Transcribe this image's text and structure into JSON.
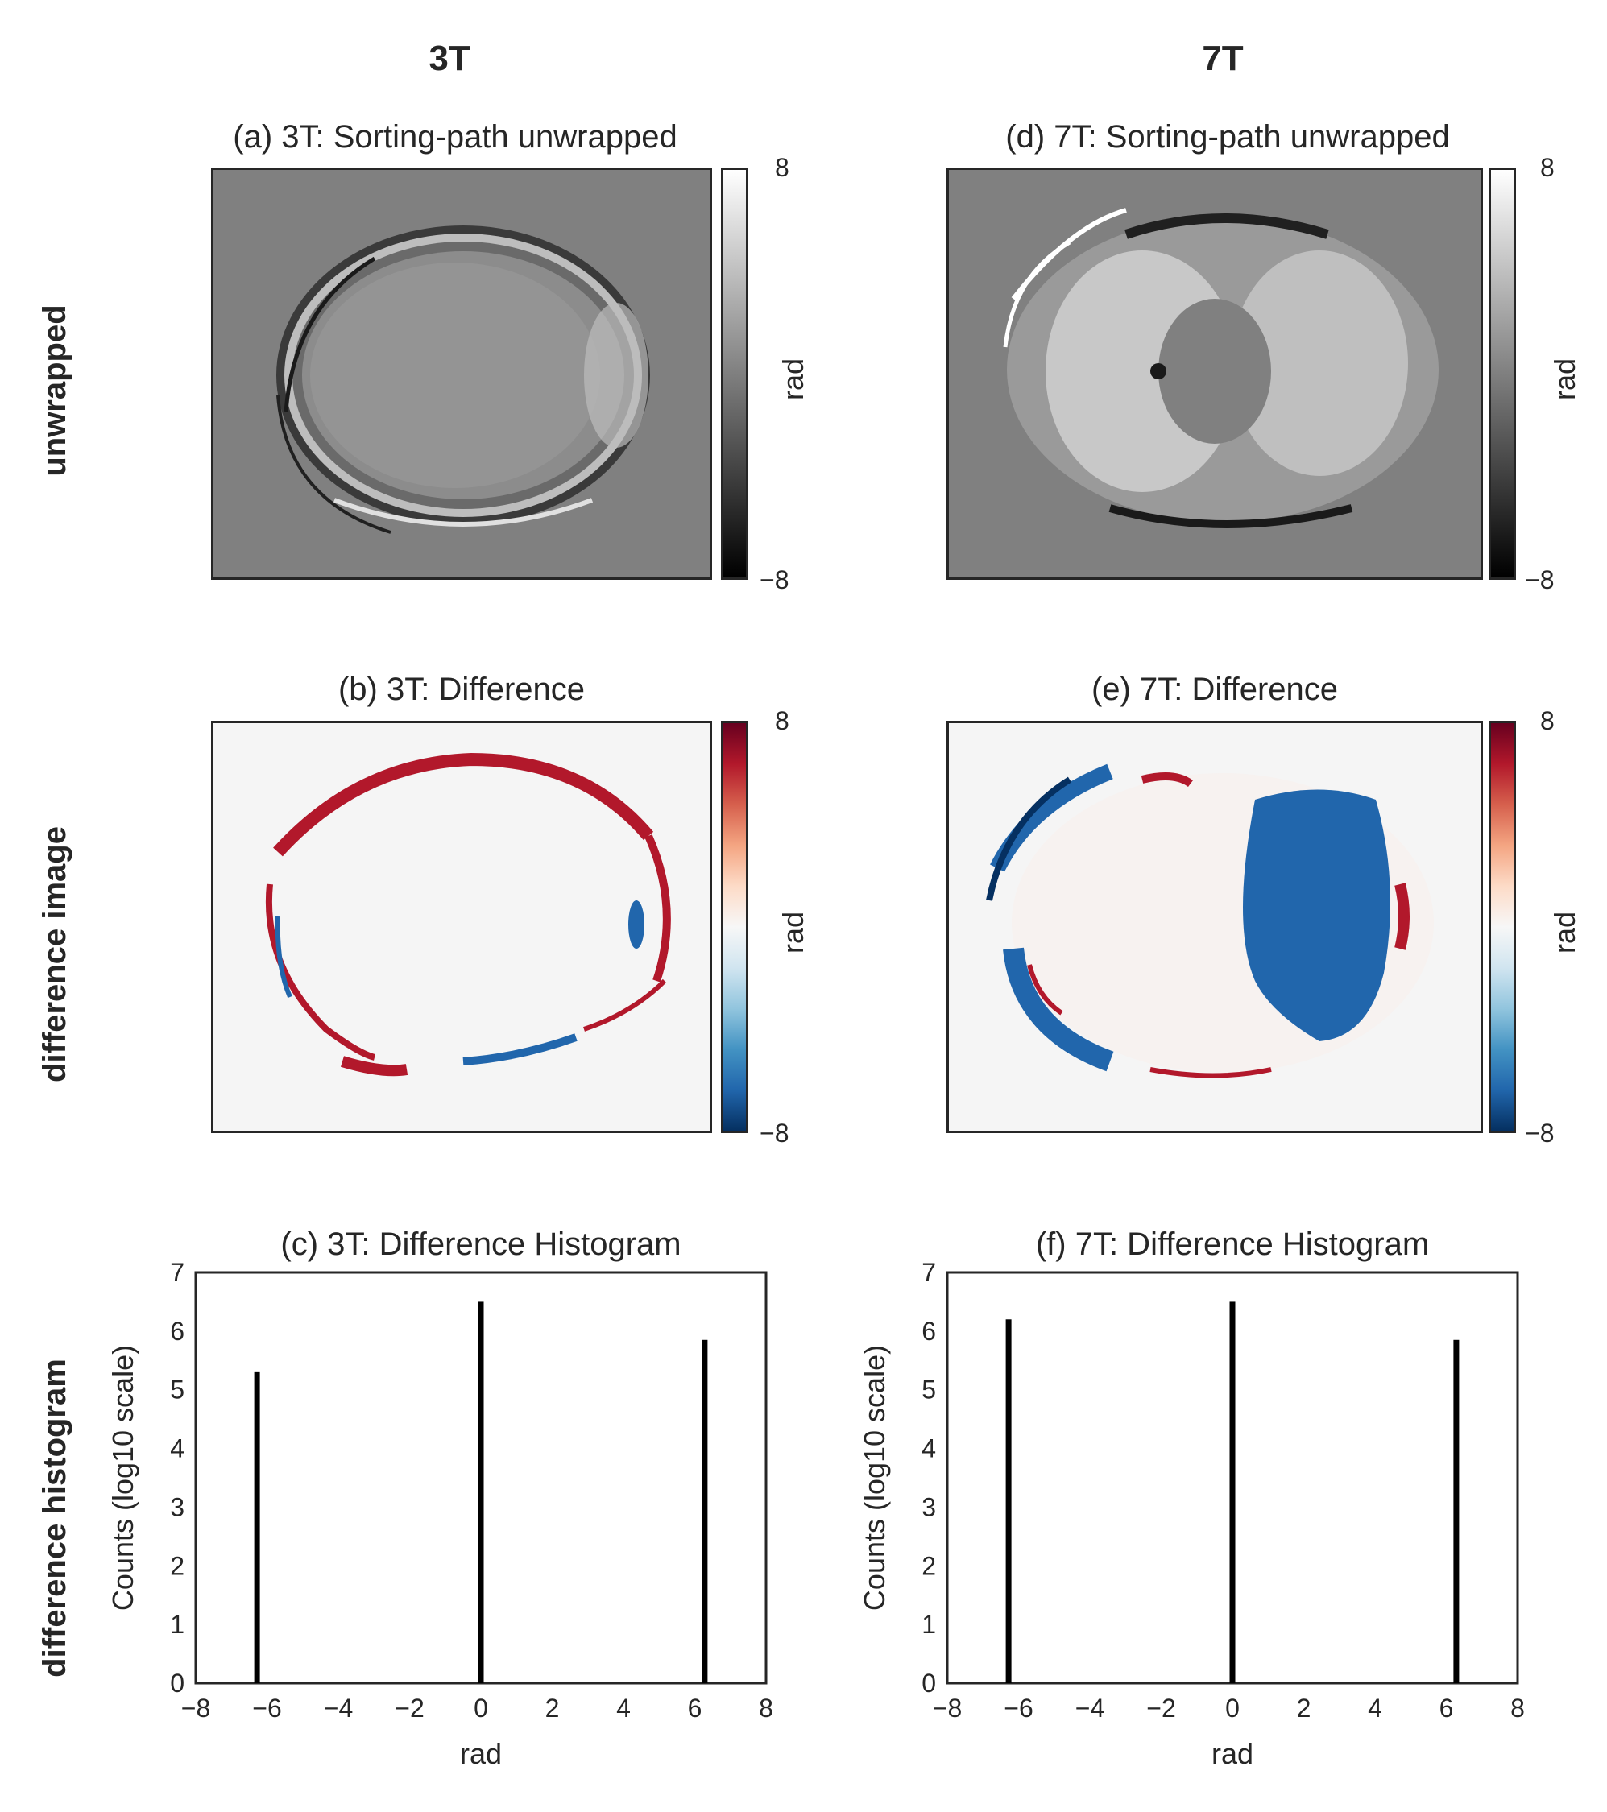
{
  "columns": [
    "3T",
    "7T"
  ],
  "rows": [
    "unwrapped",
    "difference image",
    "difference histogram"
  ],
  "panels": {
    "a": {
      "title": "(a) 3T: Sorting-path unwrapped",
      "cbar_label": "rad",
      "cbar_max": "8",
      "cbar_min": "−8",
      "colormap": "gray"
    },
    "b": {
      "title": "(b) 3T: Difference",
      "cbar_label": "rad",
      "cbar_max": "8",
      "cbar_min": "−8",
      "colormap": "RdBu_r"
    },
    "d": {
      "title": "(d) 7T: Sorting-path unwrapped",
      "cbar_label": "rad",
      "cbar_max": "8",
      "cbar_min": "−8",
      "colormap": "gray"
    },
    "e": {
      "title": "(e) 7T: Difference",
      "cbar_label": "rad",
      "cbar_max": "8",
      "cbar_min": "−8",
      "colormap": "RdBu_r"
    }
  },
  "colors": {
    "red": "#b2182b",
    "blue": "#2166ac",
    "dark_blue": "#053061",
    "gray": "#808080",
    "bg": "#f5f5f5"
  },
  "chart_data": [
    {
      "type": "bar",
      "id": "c",
      "title": "(c) 3T: Difference Histogram",
      "xlabel": "rad",
      "ylabel": "Counts (log10 scale)",
      "xlim": [
        -8,
        8
      ],
      "ylim": [
        0,
        7
      ],
      "xticks": [
        -8,
        -6,
        -4,
        -2,
        0,
        2,
        4,
        6,
        8
      ],
      "yticks": [
        0,
        1,
        2,
        3,
        4,
        5,
        6,
        7
      ],
      "x": [
        -6.28,
        0,
        6.28
      ],
      "values": [
        5.3,
        6.5,
        5.85
      ]
    },
    {
      "type": "bar",
      "id": "f",
      "title": "(f) 7T: Difference Histogram",
      "xlabel": "rad",
      "ylabel": "Counts (log10 scale)",
      "xlim": [
        -8,
        8
      ],
      "ylim": [
        0,
        7
      ],
      "xticks": [
        -8,
        -6,
        -4,
        -2,
        0,
        2,
        4,
        6,
        8
      ],
      "yticks": [
        0,
        1,
        2,
        3,
        4,
        5,
        6,
        7
      ],
      "x": [
        -6.28,
        0,
        6.28
      ],
      "values": [
        6.2,
        6.5,
        5.85
      ]
    }
  ]
}
